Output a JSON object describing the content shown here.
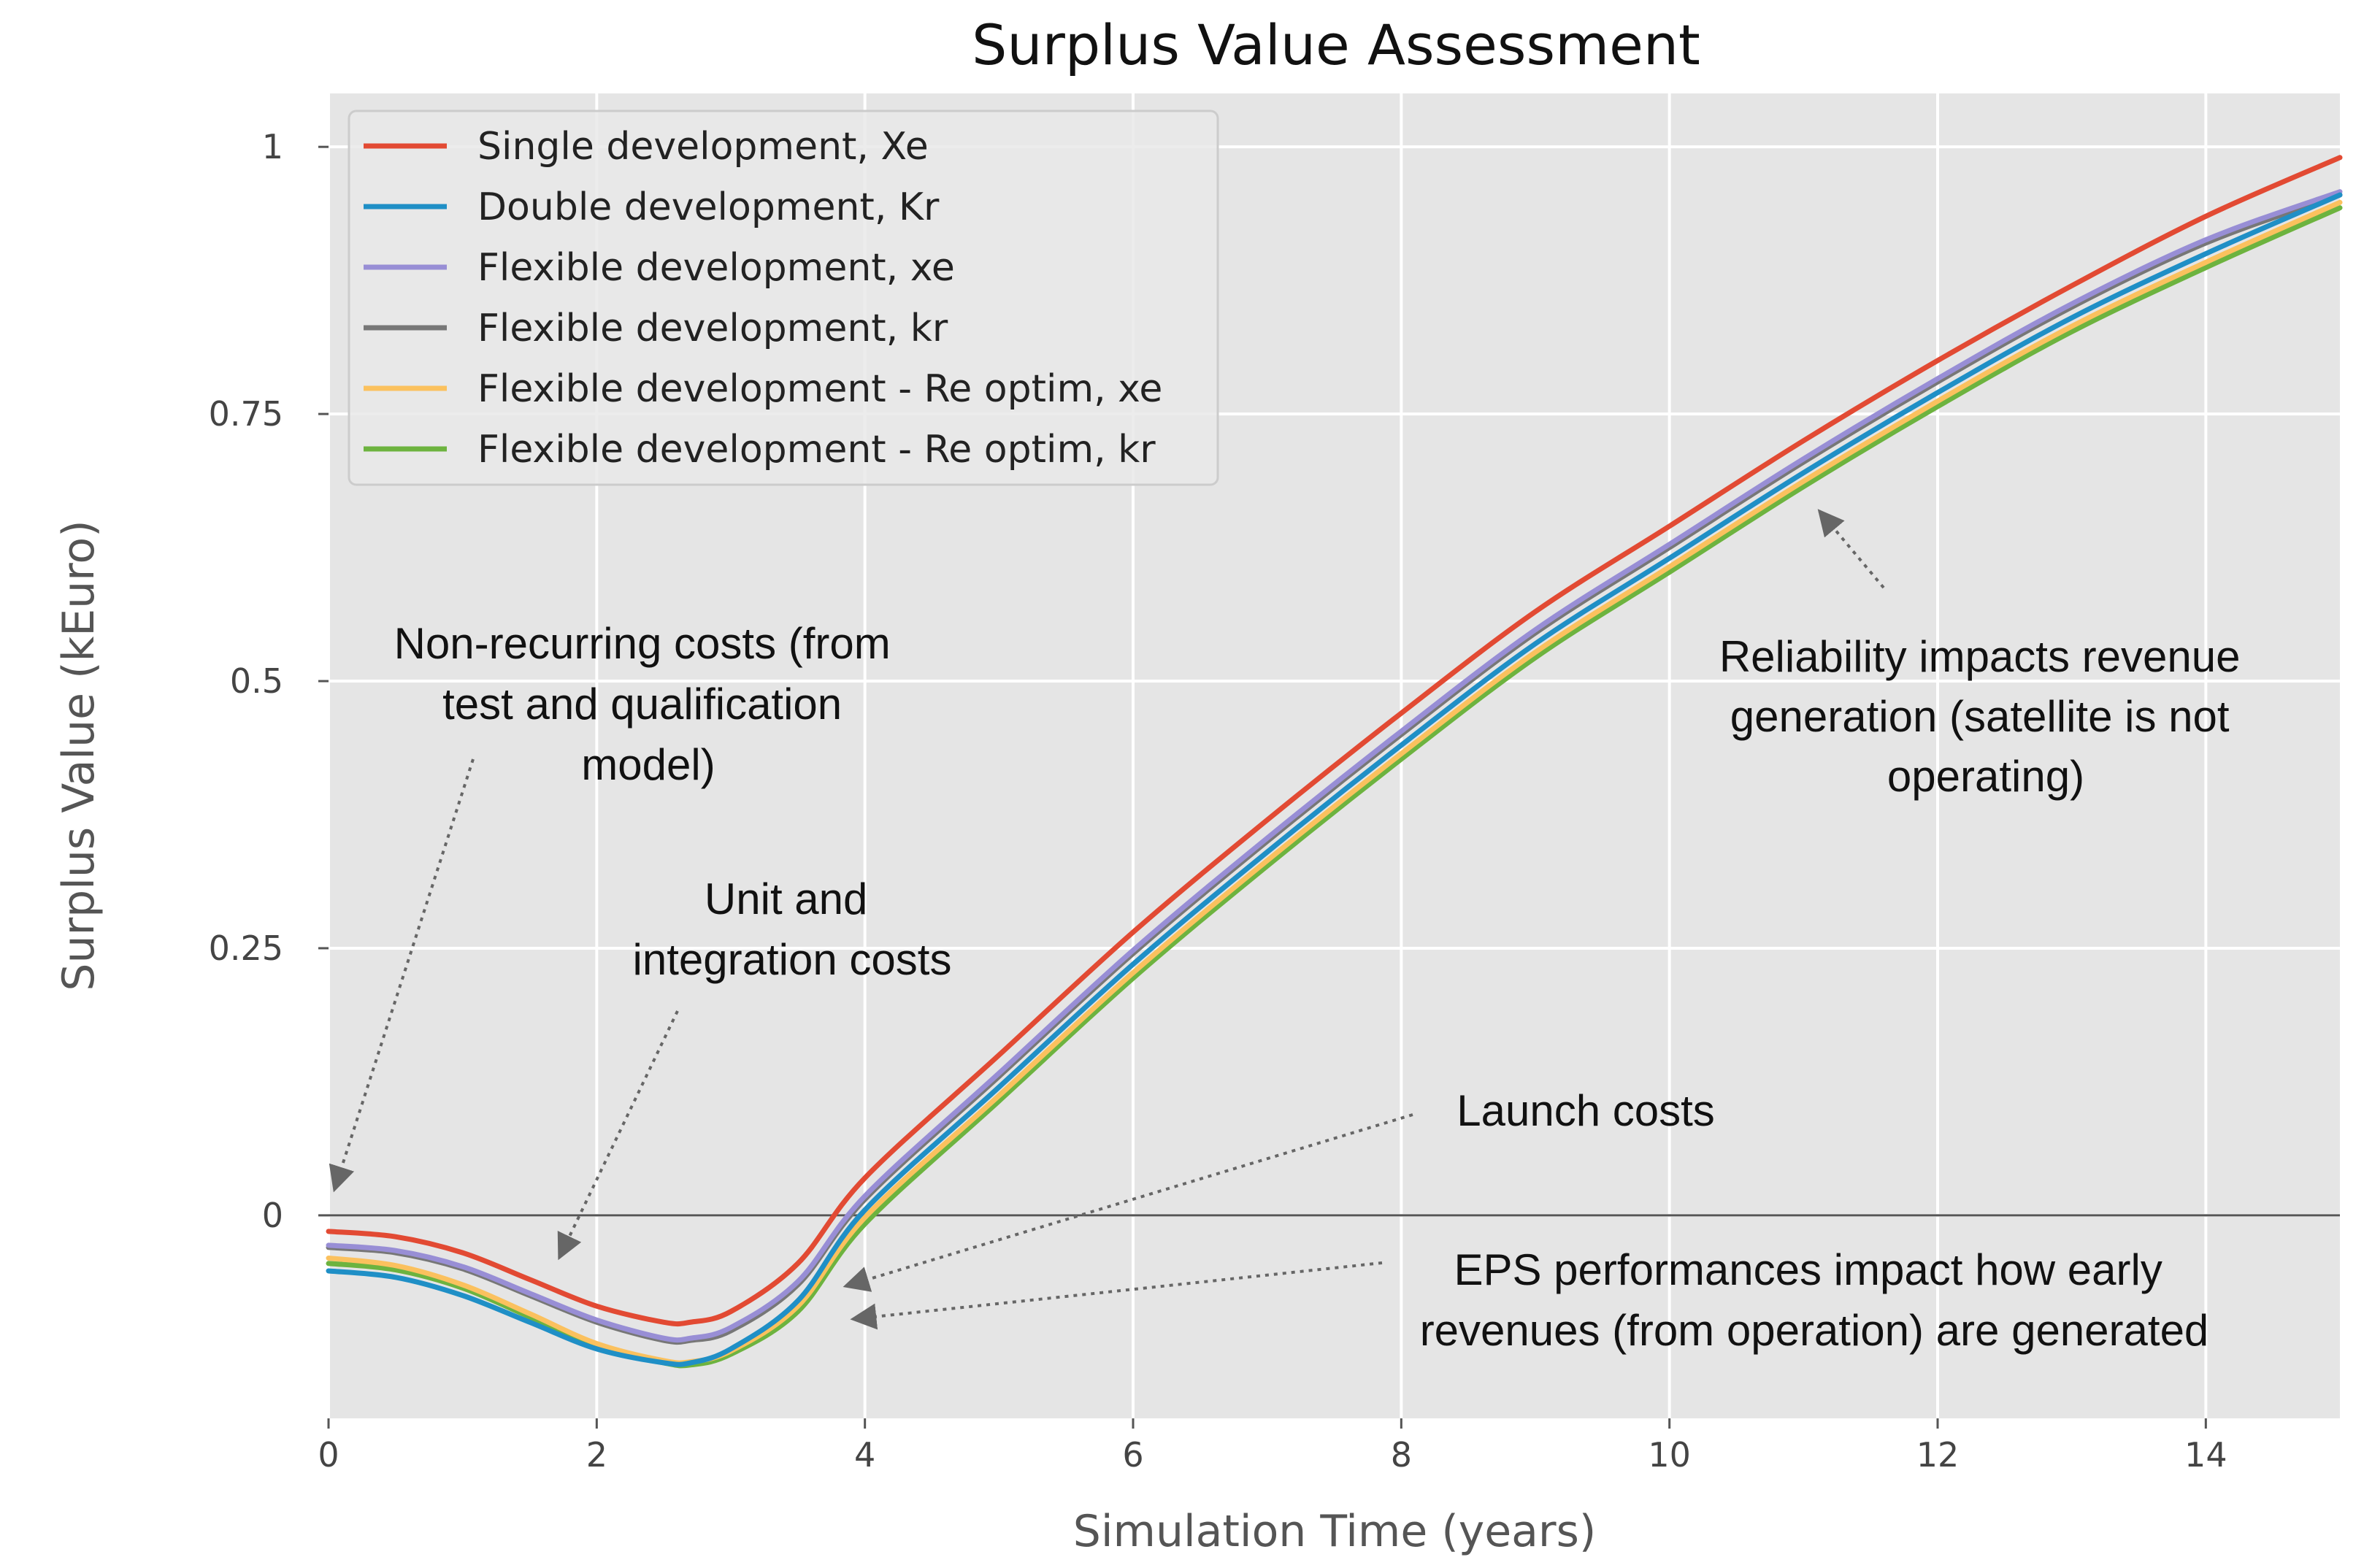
{
  "chart_data": {
    "type": "line",
    "title": "Surplus Value Assessment",
    "xlabel": "Simulation Time (years)",
    "ylabel": "Surplus Value (kEuro)",
    "xlim": [
      0,
      15
    ],
    "ylim": [
      -0.19,
      1.05
    ],
    "xticks": [
      0,
      2,
      4,
      6,
      8,
      10,
      12,
      14
    ],
    "xtick_labels": [
      "0",
      "2",
      "4",
      "6",
      "8",
      "10",
      "12",
      "14"
    ],
    "yticks": [
      0,
      0.25,
      0.5,
      0.75,
      1
    ],
    "ytick_labels": [
      "0",
      "0.25",
      "0.5",
      "0.75",
      "1"
    ],
    "grid": true,
    "legend_position": "top-left",
    "x": [
      0,
      0.5,
      1,
      1.5,
      2,
      2.5,
      2.7,
      3,
      3.5,
      4,
      5,
      6,
      7,
      8,
      9,
      10,
      11,
      12,
      13,
      14,
      15
    ],
    "series": [
      {
        "name": "Single development, Xe",
        "color": "#e24a33",
        "values": [
          -0.015,
          -0.02,
          -0.035,
          -0.06,
          -0.085,
          -0.1,
          -0.1,
          -0.09,
          -0.045,
          0.035,
          0.15,
          0.265,
          0.37,
          0.47,
          0.565,
          0.645,
          0.725,
          0.8,
          0.87,
          0.935,
          0.99
        ]
      },
      {
        "name": "Double development, Kr",
        "color": "#1f8fc6",
        "values": [
          -0.052,
          -0.058,
          -0.075,
          -0.1,
          -0.125,
          -0.138,
          -0.138,
          -0.125,
          -0.08,
          0.005,
          0.12,
          0.235,
          0.34,
          0.44,
          0.535,
          0.615,
          0.695,
          0.77,
          0.84,
          0.9,
          0.955
        ]
      },
      {
        "name": "Flexible development, xe",
        "color": "#988ed5",
        "values": [
          -0.028,
          -0.033,
          -0.048,
          -0.073,
          -0.098,
          -0.115,
          -0.115,
          -0.105,
          -0.062,
          0.018,
          0.133,
          0.248,
          0.353,
          0.453,
          0.548,
          0.628,
          0.708,
          0.783,
          0.853,
          0.913,
          0.958
        ]
      },
      {
        "name": "Flexible development, kr",
        "color": "#777777",
        "values": [
          -0.03,
          -0.035,
          -0.05,
          -0.075,
          -0.1,
          -0.117,
          -0.117,
          -0.108,
          -0.065,
          0.015,
          0.13,
          0.245,
          0.35,
          0.45,
          0.545,
          0.625,
          0.705,
          0.78,
          0.85,
          0.91,
          0.955
        ]
      },
      {
        "name": "Flexible development - Re optim, xe",
        "color": "#fbc15e",
        "values": [
          -0.04,
          -0.047,
          -0.065,
          -0.092,
          -0.12,
          -0.136,
          -0.137,
          -0.127,
          -0.085,
          -0.002,
          0.112,
          0.227,
          0.332,
          0.432,
          0.527,
          0.607,
          0.687,
          0.762,
          0.832,
          0.892,
          0.948
        ]
      },
      {
        "name": "Flexible development - Re optim, kr",
        "color": "#6db33f",
        "values": [
          -0.045,
          -0.051,
          -0.068,
          -0.095,
          -0.122,
          -0.138,
          -0.14,
          -0.13,
          -0.09,
          -0.008,
          0.107,
          0.222,
          0.327,
          0.427,
          0.522,
          0.602,
          0.682,
          0.757,
          0.827,
          0.887,
          0.943
        ]
      }
    ],
    "annotations": [
      {
        "lines": [
          "Non-recurring costs (from",
          "test and qualification",
          "model)"
        ]
      },
      {
        "lines": [
          "Unit and",
          "integration costs"
        ]
      },
      {
        "lines": [
          "Reliability impacts revenue",
          "generation (satellite is not",
          "operating)"
        ]
      },
      {
        "lines": [
          "Launch costs"
        ]
      },
      {
        "lines": [
          "EPS performances impact how early",
          "revenues (from operation) are generated"
        ]
      }
    ],
    "colors": {
      "plot_background": "#e5e5e5",
      "grid": "#ffffff",
      "zero_line": "#555555",
      "arrow": "#666666"
    }
  }
}
